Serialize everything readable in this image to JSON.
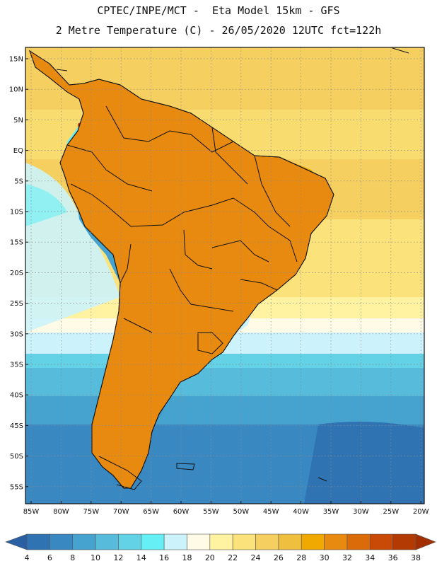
{
  "title_line1": "CPTEC/INPE/MCT -  Eta Model 15km - GFS",
  "title_line2": "2 Metre Temperature (C) - 26/05/2020 12UTC fct=122h",
  "lat_labels": [
    "15N",
    "10N",
    "5N",
    "EQ",
    "5S",
    "10S",
    "15S",
    "20S",
    "25S",
    "30S",
    "35S",
    "40S",
    "45S",
    "50S",
    "55S"
  ],
  "lon_labels": [
    "85W",
    "80W",
    "75W",
    "70W",
    "65W",
    "60W",
    "55W",
    "50W",
    "45W",
    "40W",
    "35W",
    "30W",
    "25W",
    "20W"
  ],
  "colorbar": {
    "labels": [
      "4",
      "6",
      "8",
      "10",
      "12",
      "14",
      "16",
      "18",
      "20",
      "22",
      "24",
      "26",
      "28",
      "30",
      "32",
      "34",
      "36",
      "38"
    ],
    "colors": [
      "#2a5fa4",
      "#2f73b3",
      "#3a88c2",
      "#46a2cf",
      "#57bcdc",
      "#63d2e6",
      "#66f0f6",
      "#ccf3fb",
      "#fffbe6",
      "#fff2a0",
      "#fbe27a",
      "#f5d060",
      "#efbf40",
      "#f0a900",
      "#e88a10",
      "#db6a08",
      "#c84a06",
      "#b43a04",
      "#a32f00"
    ]
  }
}
